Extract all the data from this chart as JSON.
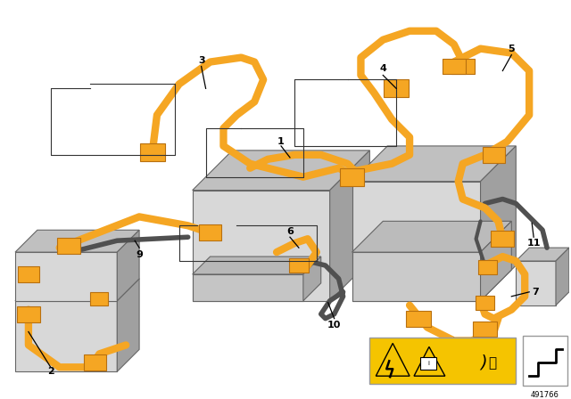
{
  "bg_color": "#ffffff",
  "part_number": "491766",
  "orange": "#F5A623",
  "orange_dark": "#D4891A",
  "gray_light": "#D8D8D8",
  "gray_mid": "#C0C0C0",
  "gray_dark": "#A0A0A0",
  "gray_cable": "#505050",
  "black": "#000000",
  "warning_yellow": "#F5C400",
  "cable_lw": 6,
  "connector_color": "#F5A623",
  "label_fontsize": 8
}
